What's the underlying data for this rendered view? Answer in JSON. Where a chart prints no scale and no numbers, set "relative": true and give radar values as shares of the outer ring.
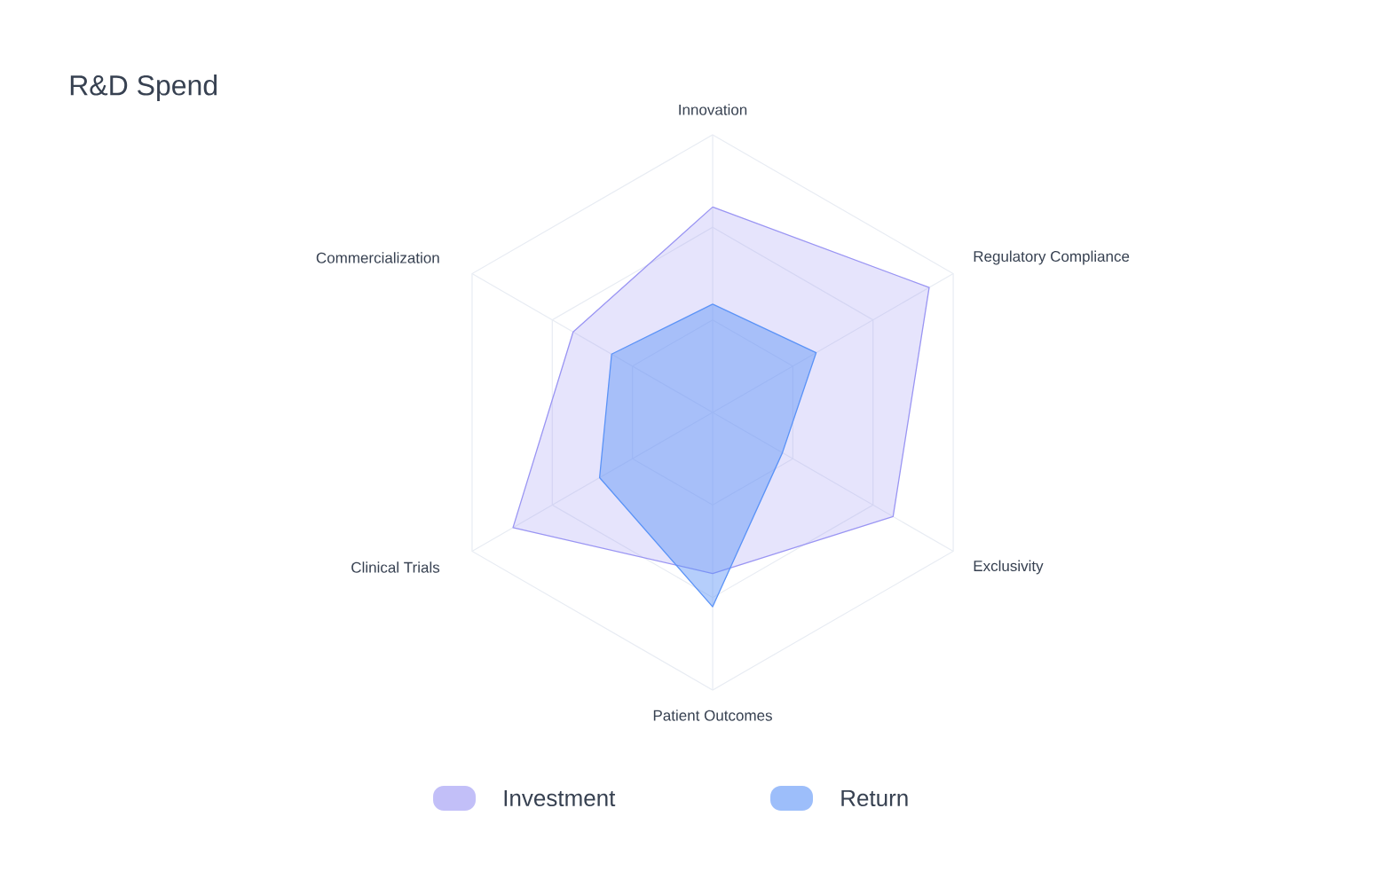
{
  "chart_data": {
    "type": "radar",
    "title": "R&D Spend",
    "relative": true,
    "grid": true,
    "legend": "bottom",
    "categories": [
      "Innovation",
      "Regulatory Compliance",
      "Exclusivity",
      "Patient Outcomes",
      "Clinical Trials",
      "Commercialization"
    ],
    "series": [
      {
        "name": "Investment",
        "color": "#9a95f3",
        "values": [
          0.74,
          0.9,
          0.75,
          0.58,
          0.83,
          0.58
        ]
      },
      {
        "name": "Return",
        "color": "#5b93f7",
        "values": [
          0.39,
          0.43,
          0.29,
          0.7,
          0.47,
          0.42
        ]
      }
    ]
  }
}
